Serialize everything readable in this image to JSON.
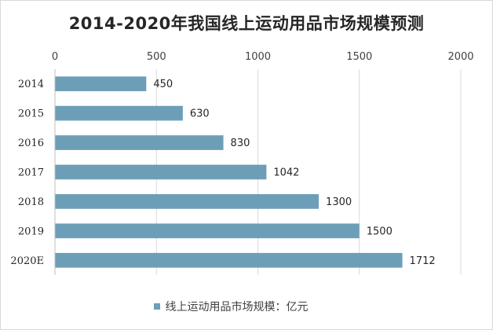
{
  "chart_data": {
    "type": "bar",
    "orientation": "horizontal",
    "title": "2014-2020年我国线上运动用品市场规模预测",
    "categories": [
      "2014",
      "2015",
      "2016",
      "2017",
      "2018",
      "2019",
      "2020E"
    ],
    "series": [
      {
        "name": "线上运动用品市场规模：亿元",
        "values": [
          450,
          630,
          830,
          1042,
          1300,
          1500,
          1712
        ]
      }
    ],
    "xlim": [
      0,
      2000
    ],
    "x_ticks": [
      "0",
      "500",
      "1000",
      "1500",
      "2000"
    ],
    "x_axis_position": "top",
    "grid": true,
    "legend_position": "bottom",
    "data_labels": true,
    "bar_color": "#6c9fb7"
  }
}
